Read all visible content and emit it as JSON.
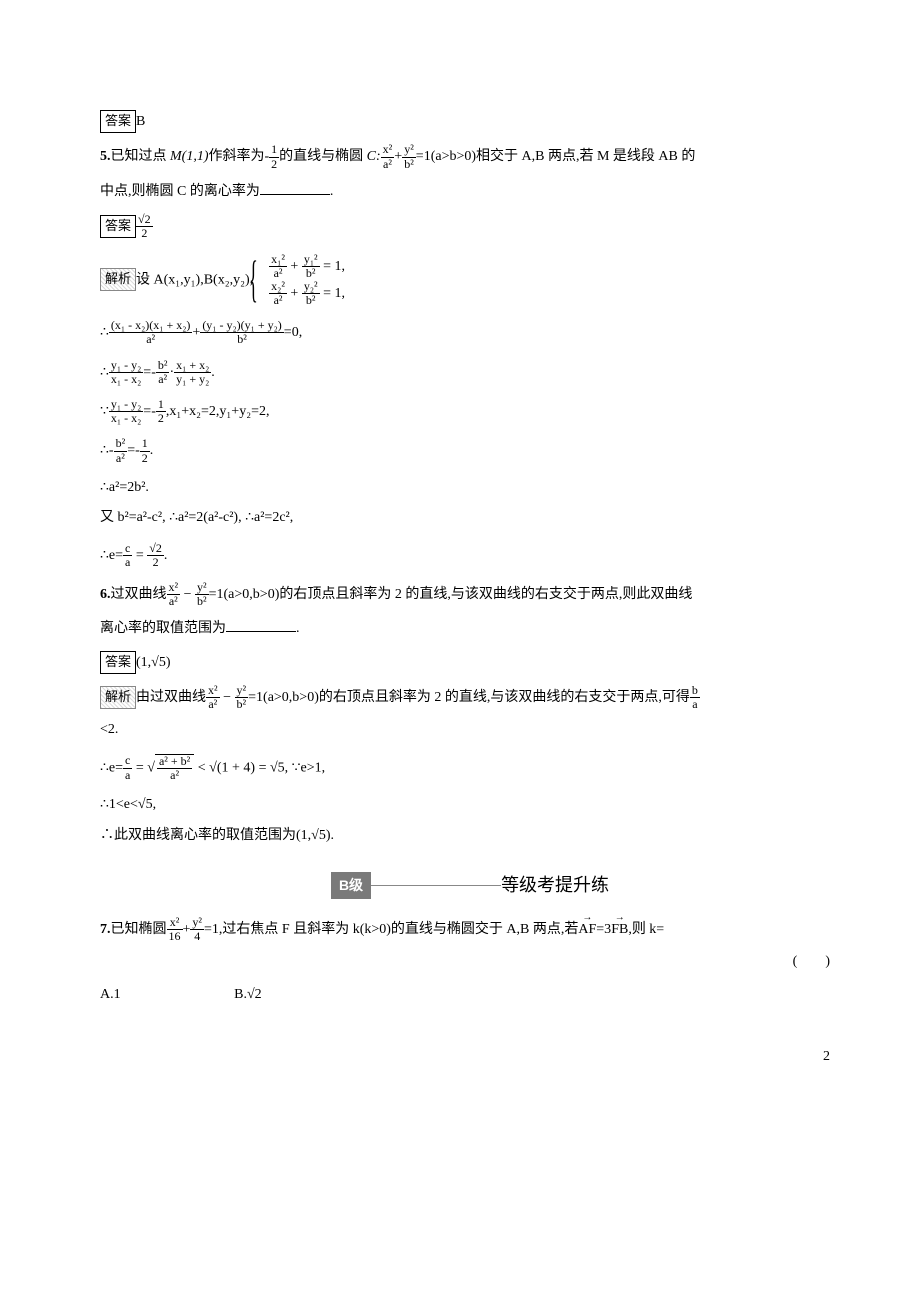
{
  "q4_answer_label": "答案",
  "q4_answer": "B",
  "q5": {
    "prefix": "5.",
    "text_a": "已知过点 ",
    "point_M": "M(1,1)",
    "text_b": "作斜率为-",
    "slope_num": "1",
    "slope_den": "2",
    "text_c": "的直线与椭圆 ",
    "curve_C": "C:",
    "eq_x_num": "x²",
    "eq_x_den": "a²",
    "plus": "+",
    "eq_y_num": "y²",
    "eq_y_den": "b²",
    "eq_rhs": "=1(a>b>0)",
    "text_d": "相交于 A,B 两点,若 M 是线段 AB 的",
    "text_e": "中点,则椭圆 C 的离心率为",
    "answer_label": "答案",
    "answer_num": "√2",
    "answer_den": "2",
    "analysis_label": "解析",
    "analysis_a": "设 A(x₁,y₁),B(x₂,y₂),",
    "sys_r1_t1n": "x₁²",
    "sys_r1_t1d": "a²",
    "sys_r1_t2n": "y₁²",
    "sys_r1_t2d": "b²",
    "sys_r1_rhs": " = 1,",
    "sys_r2_t1n": "x₂²",
    "sys_r2_t1d": "a²",
    "sys_r2_t2n": "y₂²",
    "sys_r2_t2d": "b²",
    "sys_r2_rhs": " = 1,",
    "step1_prefix": "∴",
    "step1_t1n": "(x₁ - x₂)(x₁ + x₂)",
    "step1_t1d": "a²",
    "step1_mid": "+",
    "step1_t2n": "(y₁ - y₂)(y₁ + y₂)",
    "step1_t2d": "b²",
    "step1_suffix": "=0,",
    "step2_prefix": "∴",
    "step2_ln": "y₁ - y₂",
    "step2_ld": "x₁ - x₂",
    "step2_mid": "=-",
    "step2_mn": "b²",
    "step2_md": "a²",
    "step2_dot": "·",
    "step2_rn": "x₁ + x₂",
    "step2_rd": "y₁ + y₂",
    "step2_suffix": ".",
    "step3_prefix": "∵",
    "step3_ln": "y₁ - y₂",
    "step3_ld": "x₁ - x₂",
    "step3_mid": "=-",
    "step3_rn": "1",
    "step3_rd": "2",
    "step3_suffix": ",x₁+x₂=2,y₁+y₂=2,",
    "step4_prefix": "∴-",
    "step4_ln": "b²",
    "step4_ld": "a²",
    "step4_mid": "=-",
    "step4_rn": "1",
    "step4_rd": "2",
    "step4_suffix": ".",
    "step5": "∴a²=2b².",
    "step6": "又 b²=a²-c², ∴a²=2(a²-c²), ∴a²=2c²,",
    "step7_prefix": "∴e=",
    "step7_ln": "c",
    "step7_ld": "a",
    "step7_eq": " = ",
    "step7_rn": "√2",
    "step7_rd": "2",
    "step7_suffix": "."
  },
  "q6": {
    "prefix": "6.",
    "text_a": "过双曲线",
    "eq_xn": "x²",
    "eq_xd": "a²",
    "minus": " − ",
    "eq_yn": "y²",
    "eq_yd": "b²",
    "eq_rhs": "=1(a>0,b>0)的右顶点且斜率为 2 的直线,与该双曲线的右支交于两点,则此双曲线",
    "text_b": "离心率的取值范围为",
    "answer_label": "答案",
    "answer": "(1,√5)",
    "analysis_label": "解析",
    "analysis_a": "由过双曲线",
    "analysis_b": "=1(a>0,b>0)的右顶点且斜率为 2 的直线,与该双曲线的右支交于两点,可得",
    "analysis_cn": "b",
    "analysis_cd": "a",
    "lt2": "<2.",
    "step1_prefix": "∴e=",
    "step1_cn": "c",
    "step1_cd": "a",
    "step1_eq": " = ",
    "step1_inner_n": "a² + b²",
    "step1_inner_d": "a²",
    "step1_lt": " < ",
    "step1_r1": "√(1 + 4)",
    "step1_eq2": " = √5, ∵e>1,",
    "step2": "∴1<e<√5,",
    "step3": "∴此双曲线离心率的取值范围为(1,√5)."
  },
  "section_b": {
    "badge": "B级",
    "text": "等级考提升练"
  },
  "q7": {
    "prefix": "7.",
    "text_a": "已知椭圆",
    "eq_xn": "x²",
    "eq_xd": "16",
    "plus": "+",
    "eq_yn": "y²",
    "eq_yd": "4",
    "text_b": "=1,过右焦点 F 且斜率为 k(k>0)的直线与椭圆交于 A,B 两点,若",
    "vec1": "AF",
    "eq": "=3",
    "vec2": "FB",
    "text_c": ",则 k=",
    "paren": "(　　)",
    "opt_a": "A.1",
    "opt_b": "B.√2"
  },
  "page_num": "2",
  "colors": {
    "text": "#000000",
    "bg": "#ffffff",
    "badge_bg": "#7a7a7a",
    "badge_text": "#ffffff"
  },
  "fontsize": {
    "body": 14,
    "header": 18
  }
}
